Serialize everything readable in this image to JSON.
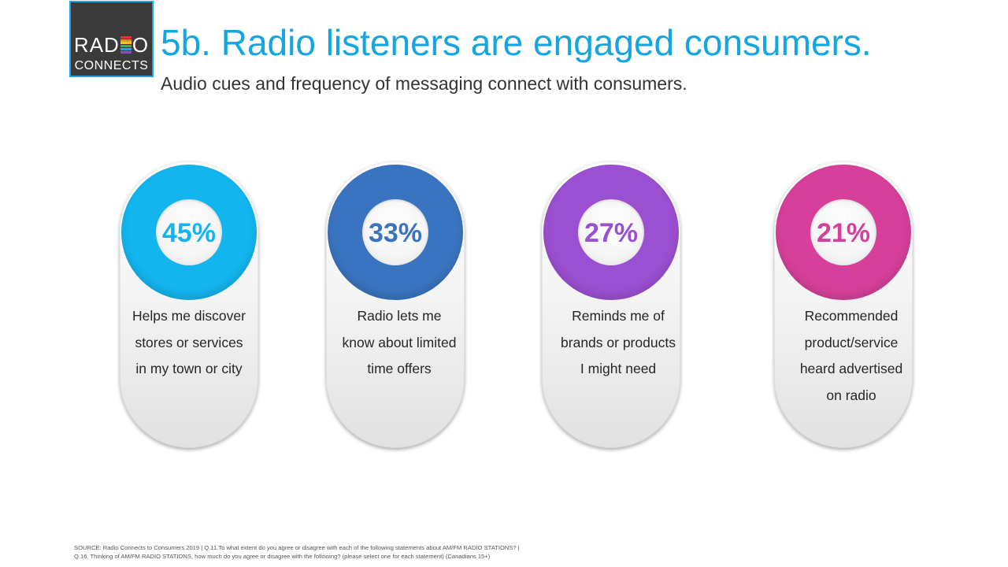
{
  "logo": {
    "line1": "RAD",
    "line1_end": "O",
    "line2": "CONNECTS",
    "bar_colors": [
      "#e8322b",
      "#f08a24",
      "#f5c518",
      "#3fae49",
      "#1aa7e6",
      "#8a4fbf"
    ]
  },
  "header": {
    "title": "5b. Radio listeners are engaged consumers.",
    "subtitle": "Audio cues and frequency of messaging connect with consumers."
  },
  "stats": [
    {
      "value": "45%",
      "percent": 45,
      "color": "#13b5ef",
      "lines": [
        "Helps me discover",
        "stores or services",
        "in my town or city"
      ]
    },
    {
      "value": "33%",
      "percent": 33,
      "color": "#3a74c0",
      "lines": [
        "Radio lets me",
        "know about limited",
        "time offers"
      ]
    },
    {
      "value": "27%",
      "percent": 27,
      "color": "#9b4fd1",
      "lines": [
        "Reminds me of",
        "brands or products",
        "I might need"
      ]
    },
    {
      "value": "21%",
      "percent": 21,
      "color": "#d6409a",
      "lines": [
        "Recommended",
        "product/service",
        "heard advertised",
        "on radio"
      ]
    }
  ],
  "footer": {
    "source_line1": "SOURCE: Radio Connects to Consumers 2019 | Q.11.To what extent do you agree or disagree with each of the following statements about AM/FM RADIO STATIONS? |",
    "source_line2": "Q.16. Thinking of AM/FM RADIO STATIONS, how much do you agree or disagree with the following? (please select one for each statement) (Canadians 15+)"
  }
}
